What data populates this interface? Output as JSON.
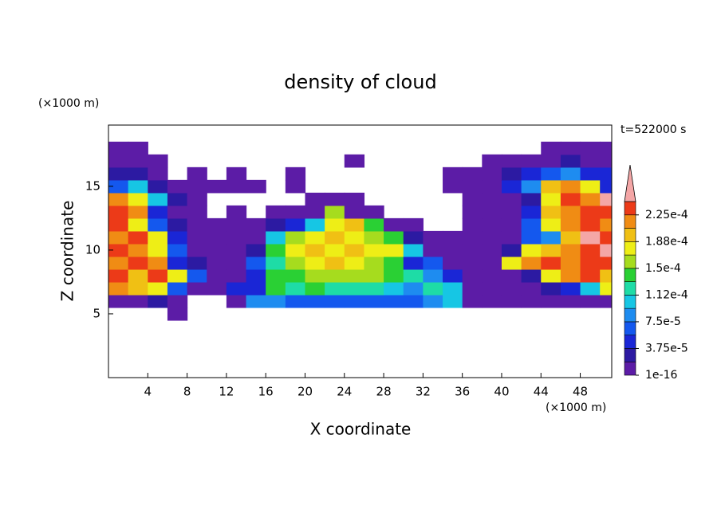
{
  "chart_data": {
    "type": "contour",
    "title": "density of cloud",
    "annotation": "t=522000 s",
    "x_label": "X coordinate",
    "y_label": "Z coordinate",
    "x_unit": "(×1000 m)",
    "y_unit": "(×1000 m)",
    "xlim": [
      0,
      51.2
    ],
    "ylim": [
      0,
      19.8
    ],
    "xticks": [
      4,
      8,
      12,
      16,
      20,
      24,
      28,
      32,
      36,
      40,
      44,
      48
    ],
    "yticks": [
      5,
      10,
      15
    ],
    "x": [
      1,
      3,
      5,
      7,
      9,
      11,
      13,
      15,
      17,
      19,
      21,
      23,
      25,
      27,
      29,
      31,
      33,
      35,
      37,
      39,
      41,
      43,
      45,
      47,
      49,
      51
    ],
    "y": [
      5,
      6,
      7,
      8,
      9,
      10,
      11,
      12,
      13,
      14,
      15,
      16,
      17,
      18
    ],
    "values": [
      [
        null,
        null,
        null,
        1e-05,
        null,
        null,
        null,
        null,
        null,
        null,
        null,
        null,
        null,
        null,
        null,
        null,
        null,
        null,
        null,
        null,
        null,
        null,
        null,
        null,
        null,
        null
      ],
      [
        1e-05,
        1e-05,
        2.5e-05,
        1e-05,
        null,
        null,
        1e-05,
        8.5e-05,
        8.5e-05,
        6.5e-05,
        6.5e-05,
        6.5e-05,
        6.5e-05,
        6.5e-05,
        6.5e-05,
        6.5e-05,
        8.5e-05,
        0.000105,
        1e-05,
        1e-05,
        1e-05,
        1e-05,
        1e-05,
        1e-05,
        1e-05,
        1e-05
      ],
      [
        0.00022,
        0.000195,
        0.00018,
        6.5e-05,
        1e-05,
        1e-05,
        4.5e-05,
        4.5e-05,
        0.00014,
        0.000125,
        0.00014,
        0.000125,
        0.000125,
        0.000125,
        0.000105,
        8.5e-05,
        0.000125,
        0.000105,
        1e-05,
        1e-05,
        1e-05,
        1e-05,
        2.5e-05,
        4.5e-05,
        0.000105,
        0.00018
      ],
      [
        0.00024,
        0.000195,
        0.00024,
        0.00018,
        6.5e-05,
        1e-05,
        1e-05,
        4.5e-05,
        0.00014,
        0.00014,
        0.00016,
        0.00016,
        0.00016,
        0.00016,
        0.00014,
        0.000125,
        8.5e-05,
        4.5e-05,
        1e-05,
        1e-05,
        1e-05,
        2.5e-05,
        0.00018,
        0.00022,
        0.00024,
        0.000195
      ],
      [
        0.00022,
        0.00024,
        0.00022,
        4.5e-05,
        2.5e-05,
        1e-05,
        1e-05,
        6.5e-05,
        0.000125,
        0.00016,
        0.00018,
        0.000195,
        0.00018,
        0.00016,
        0.00014,
        4.5e-05,
        6.5e-05,
        1e-05,
        1e-05,
        1e-05,
        0.00018,
        0.00022,
        0.00024,
        0.00022,
        0.00024,
        0.00024
      ],
      [
        0.00024,
        0.00022,
        0.00018,
        6.5e-05,
        1e-05,
        1e-05,
        1e-05,
        2.5e-05,
        0.00014,
        0.00018,
        0.000195,
        0.00018,
        0.000195,
        0.00018,
        0.00018,
        0.000105,
        1e-05,
        1e-05,
        1e-05,
        1e-05,
        2.5e-05,
        0.00018,
        0.000195,
        0.00022,
        0.00024,
        0.00026
      ],
      [
        0.00022,
        0.00024,
        0.00018,
        4.5e-05,
        1e-05,
        1e-05,
        1e-05,
        1e-05,
        0.000105,
        0.00016,
        0.00018,
        0.000195,
        0.00018,
        0.00016,
        0.00014,
        2.5e-05,
        1e-05,
        1e-05,
        1e-05,
        1e-05,
        1e-05,
        6.5e-05,
        8.5e-05,
        0.000195,
        0.00026,
        0.00024
      ],
      [
        0.00024,
        0.00018,
        6.5e-05,
        2.5e-05,
        1e-05,
        1e-05,
        1e-05,
        1e-05,
        2.5e-05,
        4.5e-05,
        0.000105,
        0.00018,
        0.000195,
        0.00014,
        1e-05,
        1e-05,
        null,
        null,
        1e-05,
        1e-05,
        1e-05,
        6.5e-05,
        0.00018,
        0.00022,
        0.00024,
        0.00022
      ],
      [
        0.00024,
        0.00022,
        4.5e-05,
        1e-05,
        1e-05,
        null,
        1e-05,
        null,
        1e-05,
        1e-05,
        1e-05,
        0.00016,
        1e-05,
        1e-05,
        null,
        null,
        null,
        null,
        1e-05,
        1e-05,
        1e-05,
        4.5e-05,
        0.000195,
        0.00022,
        0.00024,
        0.00024
      ],
      [
        0.00022,
        0.00018,
        0.000105,
        2.5e-05,
        1e-05,
        null,
        null,
        null,
        null,
        null,
        1e-05,
        1e-05,
        1e-05,
        null,
        null,
        null,
        null,
        null,
        1e-05,
        1e-05,
        1e-05,
        2.5e-05,
        0.00018,
        0.00024,
        0.00022,
        0.00026
      ],
      [
        6.5e-05,
        0.000105,
        2.5e-05,
        1e-05,
        1e-05,
        1e-05,
        1e-05,
        1e-05,
        null,
        1e-05,
        null,
        null,
        null,
        null,
        null,
        null,
        null,
        1e-05,
        1e-05,
        1e-05,
        4.5e-05,
        8.5e-05,
        0.000195,
        0.00022,
        0.00018,
        4.5e-05
      ],
      [
        2.5e-05,
        2.5e-05,
        1e-05,
        null,
        1e-05,
        null,
        1e-05,
        null,
        null,
        1e-05,
        null,
        null,
        null,
        null,
        null,
        null,
        null,
        1e-05,
        1e-05,
        1e-05,
        2.5e-05,
        4.5e-05,
        6.5e-05,
        8.5e-05,
        4.5e-05,
        4.5e-05
      ],
      [
        1e-05,
        1e-05,
        1e-05,
        null,
        null,
        null,
        null,
        null,
        null,
        null,
        null,
        null,
        1e-05,
        null,
        null,
        null,
        null,
        null,
        null,
        1e-05,
        1e-05,
        1e-05,
        1e-05,
        2.5e-05,
        1e-05,
        1e-05
      ],
      [
        1e-05,
        1e-05,
        null,
        null,
        null,
        null,
        null,
        null,
        null,
        null,
        null,
        null,
        null,
        null,
        null,
        null,
        null,
        null,
        null,
        null,
        null,
        null,
        1e-05,
        1e-05,
        1e-05,
        1e-05
      ]
    ],
    "levels": [
      1e-16,
      1.875e-05,
      3.75e-05,
      5.625e-05,
      7.5e-05,
      9.375e-05,
      0.0001125,
      0.00013125,
      0.00015,
      0.00016875,
      0.0001875,
      0.00020625,
      0.000225,
      0.00024375
    ],
    "colors": [
      "#5c1ca6",
      "#2c1aa2",
      "#1a26d6",
      "#1458ee",
      "#1e8cf0",
      "#16c6e4",
      "#1edca6",
      "#2ad034",
      "#a6dc1e",
      "#eeee16",
      "#f0c014",
      "#f08c14",
      "#ec3a18"
    ],
    "over_color": "#f4a6a6",
    "colorbar_ticks": [
      1e-16,
      {
        "value": 3.75e-05,
        "label": "3.75e-5"
      },
      {
        "value": 7.5e-05,
        "label": "7.5e-5"
      },
      {
        "value": 0.0001125,
        "label": "1.12e-4"
      },
      {
        "value": 0.00015,
        "label": "1.5e-4"
      },
      {
        "value": 0.0001875,
        "label": "1.88e-4"
      },
      {
        "value": 0.000225,
        "label": "2.25e-4"
      }
    ]
  }
}
